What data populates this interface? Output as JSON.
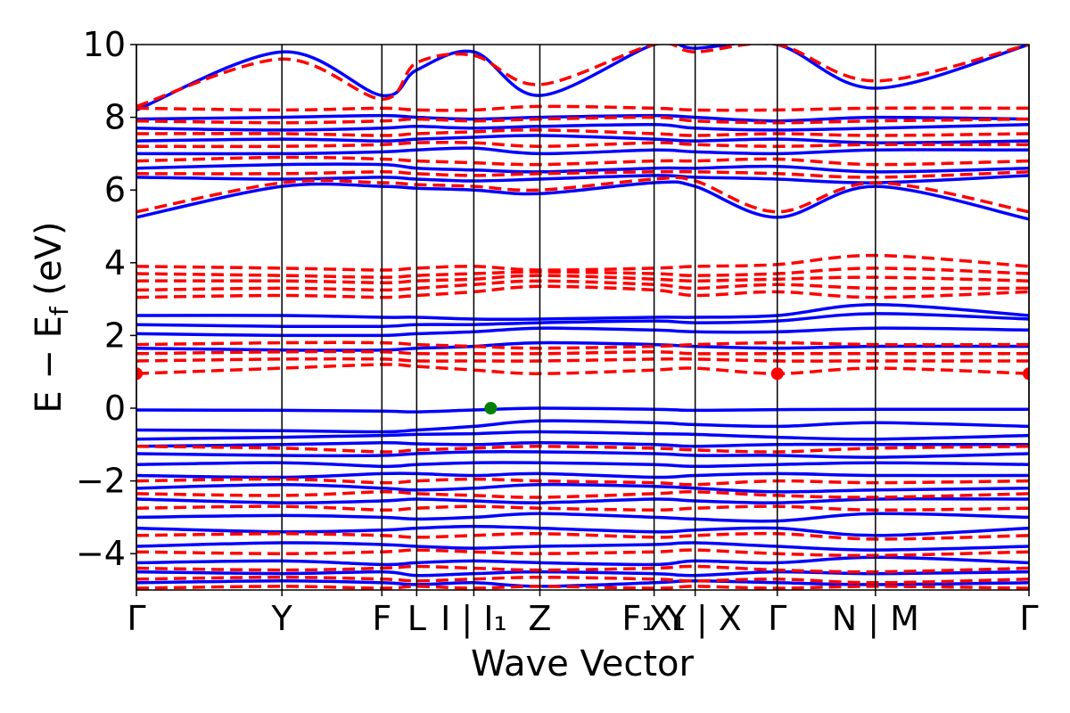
{
  "chart_data": {
    "type": "line",
    "title": "",
    "xlabel": "Wave Vector",
    "ylabel": "E − E",
    "ylabel_sub": "f",
    "ylabel_unit": " (eV)",
    "ylim": [
      -5,
      10
    ],
    "yticks": [
      -4,
      -2,
      0,
      2,
      4,
      6,
      8,
      10
    ],
    "ytick_labels": [
      "−4",
      "−2",
      "0",
      "2",
      "4",
      "6",
      "8",
      "10"
    ],
    "xlim": [
      0,
      1
    ],
    "high_symmetry_points": [
      {
        "position": 0.0,
        "label": "Γ"
      },
      {
        "position": 0.163,
        "label": "Y"
      },
      {
        "position": 0.275,
        "label": "F"
      },
      {
        "position": 0.314,
        "label": "L"
      },
      {
        "position": 0.378,
        "label": "I | I₁"
      },
      {
        "position": 0.452,
        "label": "Z"
      },
      {
        "position": 0.58,
        "label": "F₁ Y"
      },
      {
        "position": 0.626,
        "label": "X₁ | X"
      },
      {
        "position": 0.718,
        "label": "Γ"
      },
      {
        "position": 0.828,
        "label": "N | M"
      },
      {
        "position": 1.0,
        "label": "Γ"
      }
    ],
    "series": [
      {
        "style": "solid",
        "color": "#0000ff",
        "bands": [
          [
            -0.05,
            -0.06,
            -0.08,
            -0.1,
            -0.05,
            0.0,
            -0.03,
            -0.06,
            -0.04,
            -0.03,
            -0.03
          ],
          [
            -0.6,
            -0.62,
            -0.65,
            -0.6,
            -0.5,
            -0.35,
            -0.4,
            -0.45,
            -0.5,
            -0.4,
            -0.5
          ],
          [
            -0.85,
            -0.8,
            -0.75,
            -0.72,
            -0.7,
            -0.65,
            -0.7,
            -0.72,
            -0.8,
            -0.85,
            -0.75
          ],
          [
            -1.05,
            -1.0,
            -0.95,
            -0.98,
            -1.0,
            -0.95,
            -1.0,
            -1.05,
            -1.0,
            -1.0,
            -1.0
          ],
          [
            -1.25,
            -1.3,
            -1.3,
            -1.25,
            -1.2,
            -1.2,
            -1.25,
            -1.3,
            -1.3,
            -1.35,
            -1.25
          ],
          [
            -1.55,
            -1.5,
            -1.6,
            -1.55,
            -1.5,
            -1.5,
            -1.55,
            -1.6,
            -1.55,
            -1.5,
            -1.55
          ],
          [
            -1.85,
            -1.9,
            -1.8,
            -1.8,
            -1.85,
            -1.8,
            -1.9,
            -1.85,
            -1.8,
            -1.85,
            -1.85
          ],
          [
            -2.2,
            -2.1,
            -2.2,
            -2.25,
            -2.2,
            -2.1,
            -2.15,
            -2.2,
            -2.3,
            -2.25,
            -2.2
          ],
          [
            -2.5,
            -2.6,
            -2.55,
            -2.5,
            -2.55,
            -2.6,
            -2.5,
            -2.55,
            -2.6,
            -2.5,
            -2.5
          ],
          [
            -3.0,
            -2.95,
            -3.0,
            -3.05,
            -3.0,
            -2.9,
            -3.0,
            -3.05,
            -3.1,
            -2.9,
            -3.0
          ],
          [
            -3.3,
            -3.4,
            -3.35,
            -3.3,
            -3.25,
            -3.3,
            -3.4,
            -3.35,
            -3.3,
            -3.5,
            -3.3
          ],
          [
            -3.8,
            -3.7,
            -3.75,
            -3.8,
            -3.85,
            -3.8,
            -3.75,
            -3.7,
            -3.8,
            -3.9,
            -3.8
          ],
          [
            -4.25,
            -4.2,
            -4.3,
            -4.25,
            -4.2,
            -4.25,
            -4.3,
            -4.2,
            -4.25,
            -4.1,
            -4.25
          ],
          [
            -4.5,
            -4.55,
            -4.5,
            -4.6,
            -4.55,
            -4.5,
            -4.55,
            -4.6,
            -4.5,
            -4.55,
            -4.5
          ],
          [
            -4.8,
            -4.75,
            -4.8,
            -4.85,
            -4.8,
            -4.9,
            -4.8,
            -4.75,
            -4.8,
            -4.85,
            -4.8
          ],
          [
            1.65,
            1.6,
            1.6,
            1.65,
            1.7,
            1.8,
            1.75,
            1.7,
            1.65,
            1.7,
            1.7
          ],
          [
            2.05,
            2.0,
            2.0,
            2.05,
            2.1,
            2.2,
            2.15,
            2.1,
            2.1,
            2.2,
            2.15
          ],
          [
            2.3,
            2.25,
            2.25,
            2.3,
            2.3,
            2.35,
            2.4,
            2.35,
            2.4,
            2.6,
            2.45
          ],
          [
            2.55,
            2.55,
            2.5,
            2.5,
            2.45,
            2.45,
            2.5,
            2.5,
            2.55,
            2.85,
            2.55
          ],
          [
            5.25,
            6.1,
            6.1,
            6.05,
            6.0,
            5.9,
            6.2,
            6.1,
            5.25,
            6.1,
            5.2
          ],
          [
            6.35,
            6.3,
            6.35,
            6.3,
            6.25,
            6.3,
            6.4,
            6.35,
            6.3,
            6.2,
            6.4
          ],
          [
            6.6,
            6.7,
            6.7,
            6.6,
            6.55,
            6.5,
            6.6,
            6.6,
            6.65,
            6.5,
            6.6
          ],
          [
            7.0,
            7.0,
            7.05,
            7.1,
            7.15,
            7.0,
            7.1,
            7.05,
            7.0,
            7.1,
            7.1
          ],
          [
            7.35,
            7.4,
            7.35,
            7.4,
            7.45,
            7.5,
            7.4,
            7.35,
            7.4,
            7.3,
            7.35
          ],
          [
            7.7,
            7.65,
            7.7,
            7.75,
            7.7,
            7.75,
            7.8,
            7.7,
            7.65,
            7.7,
            7.8
          ],
          [
            7.95,
            8.0,
            8.05,
            8.0,
            7.95,
            8.0,
            8.05,
            8.0,
            7.9,
            8.0,
            7.95
          ],
          [
            8.2,
            9.8,
            8.6,
            9.3,
            9.8,
            8.6,
            10.0,
            9.9,
            10.0,
            8.8,
            10.0
          ]
        ]
      },
      {
        "style": "dashed",
        "color": "#ff0000",
        "bands": [
          [
            0.95,
            1.1,
            1.2,
            1.15,
            1.05,
            0.95,
            1.05,
            1.1,
            0.95,
            1.1,
            0.95
          ],
          [
            1.3,
            1.35,
            1.35,
            1.3,
            1.3,
            1.3,
            1.35,
            1.35,
            1.3,
            1.3,
            1.3
          ],
          [
            1.5,
            1.55,
            1.55,
            1.5,
            1.5,
            1.5,
            1.55,
            1.5,
            1.5,
            1.5,
            1.5
          ],
          [
            1.75,
            1.8,
            1.8,
            1.75,
            1.7,
            1.65,
            1.7,
            1.75,
            1.8,
            1.75,
            1.75
          ],
          [
            3.05,
            3.1,
            3.05,
            3.1,
            3.2,
            3.35,
            3.25,
            3.1,
            3.2,
            3.05,
            3.2
          ],
          [
            3.25,
            3.3,
            3.25,
            3.3,
            3.4,
            3.5,
            3.4,
            3.3,
            3.4,
            3.3,
            3.3
          ],
          [
            3.5,
            3.5,
            3.45,
            3.5,
            3.55,
            3.65,
            3.55,
            3.5,
            3.55,
            3.6,
            3.5
          ],
          [
            3.7,
            3.65,
            3.6,
            3.65,
            3.7,
            3.75,
            3.7,
            3.65,
            3.7,
            3.85,
            3.7
          ],
          [
            3.9,
            3.85,
            3.8,
            3.85,
            3.9,
            3.8,
            3.85,
            3.9,
            3.95,
            4.2,
            3.9
          ],
          [
            5.4,
            6.2,
            6.2,
            6.15,
            6.1,
            6.0,
            6.3,
            6.25,
            5.4,
            6.2,
            5.4
          ],
          [
            6.45,
            6.45,
            6.5,
            6.45,
            6.4,
            6.45,
            6.5,
            6.5,
            6.45,
            6.35,
            6.5
          ],
          [
            6.8,
            6.9,
            6.85,
            6.8,
            6.75,
            6.7,
            6.8,
            6.8,
            6.85,
            6.7,
            6.8
          ],
          [
            7.2,
            7.2,
            7.25,
            7.3,
            7.3,
            7.2,
            7.3,
            7.25,
            7.2,
            7.25,
            7.25
          ],
          [
            7.55,
            7.55,
            7.5,
            7.55,
            7.6,
            7.65,
            7.55,
            7.5,
            7.55,
            7.5,
            7.55
          ],
          [
            7.9,
            7.85,
            7.9,
            7.95,
            7.9,
            7.95,
            8.0,
            7.9,
            7.85,
            7.9,
            7.95
          ],
          [
            8.25,
            8.2,
            8.25,
            8.2,
            8.2,
            8.3,
            8.25,
            8.2,
            8.2,
            8.25,
            8.25
          ],
          [
            8.3,
            9.6,
            8.5,
            9.5,
            9.7,
            8.9,
            10.0,
            9.8,
            10.0,
            9.0,
            10.0
          ],
          [
            -1.05,
            -1.1,
            -1.2,
            -1.15,
            -1.1,
            -1.05,
            -1.1,
            -1.15,
            -1.2,
            -1.1,
            -1.05
          ],
          [
            -2.0,
            -1.95,
            -2.05,
            -2.0,
            -1.95,
            -2.0,
            -2.05,
            -2.1,
            -2.0,
            -2.05,
            -2.0
          ],
          [
            -2.35,
            -2.4,
            -2.3,
            -2.35,
            -2.4,
            -2.45,
            -2.35,
            -2.3,
            -2.4,
            -2.45,
            -2.35
          ],
          [
            -2.75,
            -2.7,
            -2.8,
            -2.75,
            -2.7,
            -2.75,
            -2.8,
            -2.75,
            -2.7,
            -2.8,
            -2.75
          ],
          [
            -3.5,
            -3.45,
            -3.5,
            -3.55,
            -3.5,
            -3.45,
            -3.55,
            -3.5,
            -3.45,
            -3.6,
            -3.5
          ],
          [
            -3.95,
            -4.0,
            -3.95,
            -3.9,
            -3.95,
            -4.0,
            -3.95,
            -3.9,
            -4.0,
            -4.05,
            -3.95
          ],
          [
            -4.4,
            -4.45,
            -4.4,
            -4.35,
            -4.4,
            -4.45,
            -4.4,
            -4.35,
            -4.45,
            -4.5,
            -4.4
          ],
          [
            -4.7,
            -4.65,
            -4.7,
            -4.75,
            -4.7,
            -4.65,
            -4.7,
            -4.75,
            -4.7,
            -4.8,
            -4.7
          ],
          [
            -4.95,
            -4.9,
            -4.95,
            -4.9,
            -4.95,
            -4.9,
            -4.95,
            -4.9,
            -4.95,
            -4.9,
            -4.95
          ]
        ]
      }
    ],
    "markers": [
      {
        "x": 0.0,
        "y": 0.95,
        "color": "#ff0000"
      },
      {
        "x": 0.718,
        "y": 0.95,
        "color": "#ff0000"
      },
      {
        "x": 1.0,
        "y": 0.95,
        "color": "#ff0000"
      },
      {
        "x": 0.397,
        "y": 0.0,
        "color": "#008000"
      }
    ],
    "grid": false,
    "legend": "none"
  }
}
